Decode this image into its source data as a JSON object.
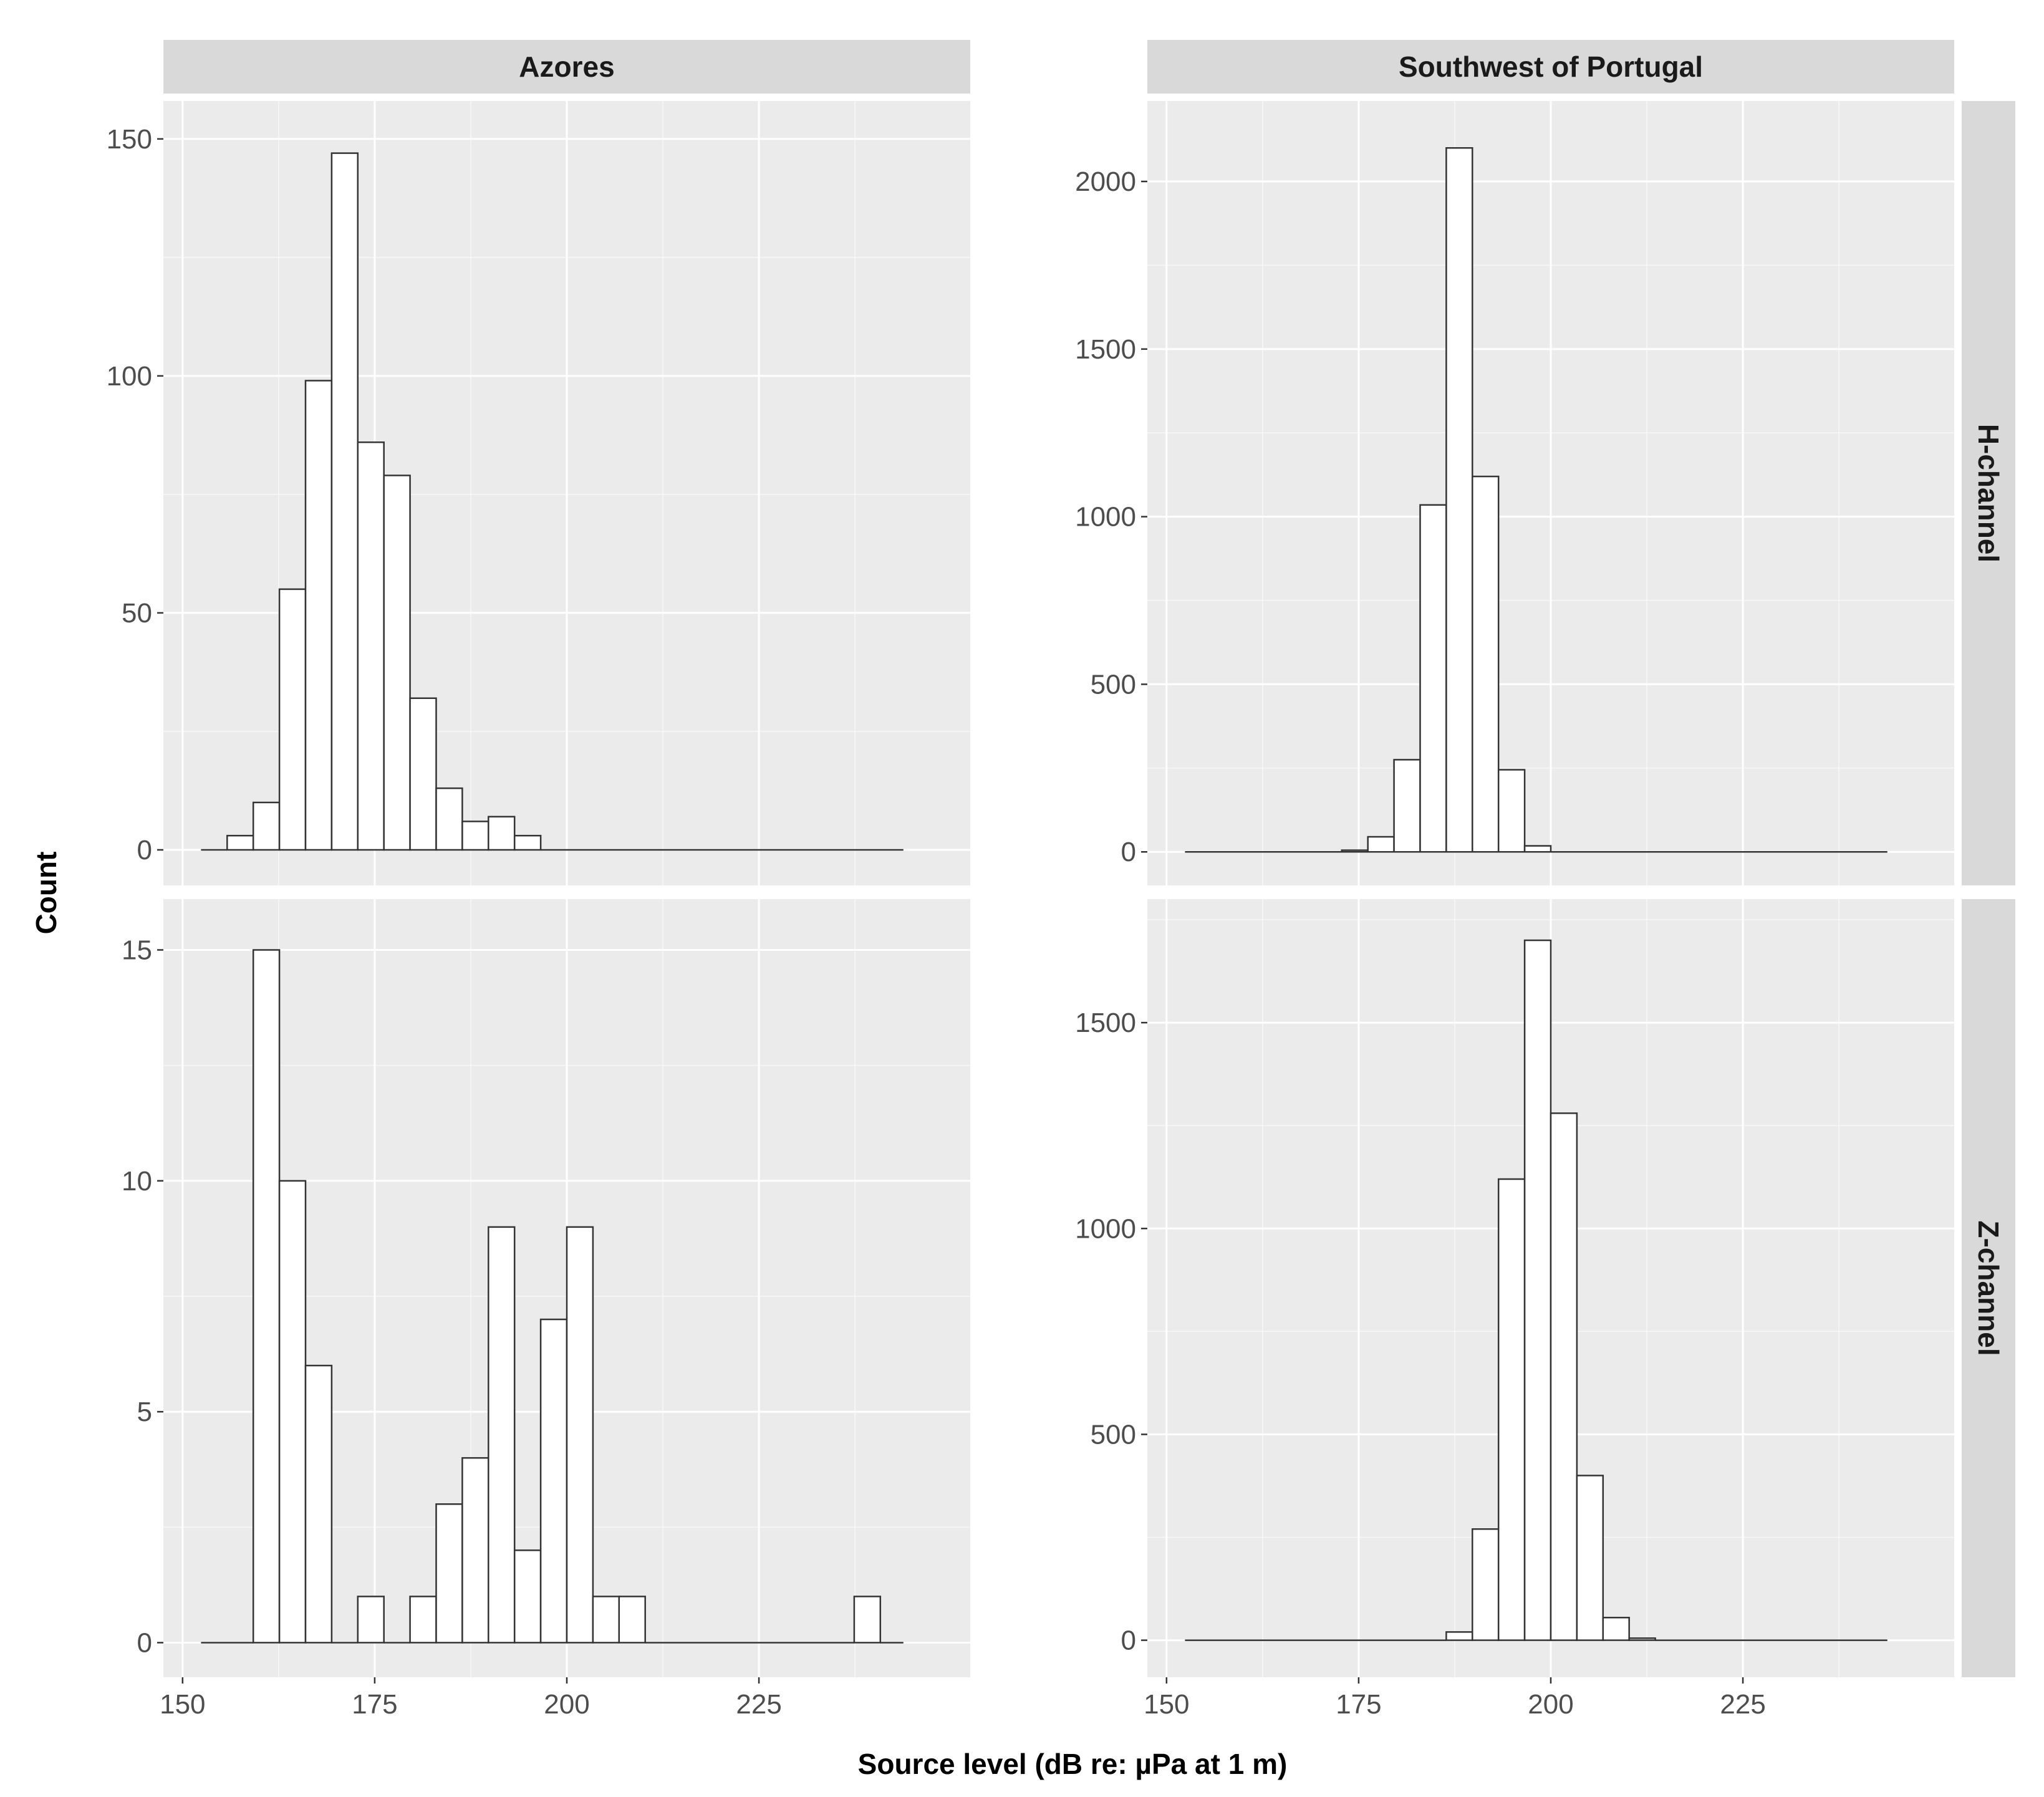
{
  "colors": {
    "panel_bg": "#ebebeb",
    "grid_major": "#ffffff",
    "strip_bg": "#d9d9d9",
    "bar_fill": "#ffffff",
    "bar_stroke": "#333333",
    "tick_text": "#4d4d4d",
    "title_text": "#000000"
  },
  "chart_data": {
    "type": "bar",
    "subtype": "faceted-histogram",
    "xlabel": "Source level (dB re: µPa at 1 m)",
    "ylabel": "Count",
    "columns": [
      "Azores",
      "Southwest of Portugal"
    ],
    "rows": [
      "H-channel",
      "Z-channel"
    ],
    "xlim": [
      147.5,
      252.5
    ],
    "x_ticks": [
      150,
      175,
      200,
      225
    ],
    "bin_width": 3.4,
    "grid": true,
    "panels": [
      {
        "column": "Azores",
        "row": "H-channel",
        "ylim": [
          -7.5,
          158
        ],
        "y_ticks": [
          0,
          50,
          100,
          150
        ],
        "bins": [
          {
            "x0": 152.4,
            "x1": 155.8,
            "count": 0
          },
          {
            "x0": 155.8,
            "x1": 159.2,
            "count": 3
          },
          {
            "x0": 159.2,
            "x1": 162.6,
            "count": 10
          },
          {
            "x0": 162.6,
            "x1": 166.0,
            "count": 55
          },
          {
            "x0": 166.0,
            "x1": 169.4,
            "count": 99
          },
          {
            "x0": 169.4,
            "x1": 172.8,
            "count": 147
          },
          {
            "x0": 172.8,
            "x1": 176.2,
            "count": 86
          },
          {
            "x0": 176.2,
            "x1": 179.6,
            "count": 79
          },
          {
            "x0": 179.6,
            "x1": 183.0,
            "count": 32
          },
          {
            "x0": 183.0,
            "x1": 186.4,
            "count": 13
          },
          {
            "x0": 186.4,
            "x1": 189.8,
            "count": 6
          },
          {
            "x0": 189.8,
            "x1": 193.2,
            "count": 7
          },
          {
            "x0": 193.2,
            "x1": 196.6,
            "count": 3
          },
          {
            "x0": 196.6,
            "x1": 243.8,
            "count": 0
          }
        ]
      },
      {
        "column": "Southwest of Portugal",
        "row": "H-channel",
        "ylim": [
          -100,
          2240
        ],
        "y_ticks": [
          0,
          500,
          1000,
          1500,
          2000
        ],
        "bins": [
          {
            "x0": 152.4,
            "x1": 172.8,
            "count": 0
          },
          {
            "x0": 172.8,
            "x1": 176.2,
            "count": 5
          },
          {
            "x0": 176.2,
            "x1": 179.6,
            "count": 45
          },
          {
            "x0": 179.6,
            "x1": 183.0,
            "count": 275
          },
          {
            "x0": 183.0,
            "x1": 186.4,
            "count": 1035
          },
          {
            "x0": 186.4,
            "x1": 189.8,
            "count": 2100
          },
          {
            "x0": 189.8,
            "x1": 193.2,
            "count": 1120
          },
          {
            "x0": 193.2,
            "x1": 196.6,
            "count": 245
          },
          {
            "x0": 196.6,
            "x1": 200.0,
            "count": 18
          },
          {
            "x0": 200.0,
            "x1": 243.8,
            "count": 0
          }
        ]
      },
      {
        "column": "Azores",
        "row": "Z-channel",
        "ylim": [
          -0.75,
          16.1
        ],
        "y_ticks": [
          0,
          5,
          10,
          15
        ],
        "bins": [
          {
            "x0": 152.4,
            "x1": 159.2,
            "count": 0
          },
          {
            "x0": 159.2,
            "x1": 162.6,
            "count": 15
          },
          {
            "x0": 162.6,
            "x1": 166.0,
            "count": 10
          },
          {
            "x0": 166.0,
            "x1": 169.4,
            "count": 6
          },
          {
            "x0": 169.4,
            "x1": 172.8,
            "count": 0
          },
          {
            "x0": 172.8,
            "x1": 176.2,
            "count": 1
          },
          {
            "x0": 176.2,
            "x1": 179.6,
            "count": 0
          },
          {
            "x0": 179.6,
            "x1": 183.0,
            "count": 1
          },
          {
            "x0": 183.0,
            "x1": 186.4,
            "count": 3
          },
          {
            "x0": 186.4,
            "x1": 189.8,
            "count": 4
          },
          {
            "x0": 189.8,
            "x1": 193.2,
            "count": 9
          },
          {
            "x0": 193.2,
            "x1": 196.6,
            "count": 2
          },
          {
            "x0": 196.6,
            "x1": 200.0,
            "count": 7
          },
          {
            "x0": 200.0,
            "x1": 203.4,
            "count": 9
          },
          {
            "x0": 203.4,
            "x1": 206.8,
            "count": 1
          },
          {
            "x0": 206.8,
            "x1": 210.2,
            "count": 1
          },
          {
            "x0": 210.2,
            "x1": 237.4,
            "count": 0
          },
          {
            "x0": 237.4,
            "x1": 240.8,
            "count": 1
          },
          {
            "x0": 240.8,
            "x1": 243.8,
            "count": 0
          }
        ]
      },
      {
        "column": "Southwest of Portugal",
        "row": "Z-channel",
        "ylim": [
          -90,
          1800
        ],
        "y_ticks": [
          0,
          500,
          1000,
          1500
        ],
        "bins": [
          {
            "x0": 152.4,
            "x1": 186.4,
            "count": 0
          },
          {
            "x0": 186.4,
            "x1": 189.8,
            "count": 20
          },
          {
            "x0": 189.8,
            "x1": 193.2,
            "count": 270
          },
          {
            "x0": 193.2,
            "x1": 196.6,
            "count": 1120
          },
          {
            "x0": 196.6,
            "x1": 200.0,
            "count": 1700
          },
          {
            "x0": 200.0,
            "x1": 203.4,
            "count": 1280
          },
          {
            "x0": 203.4,
            "x1": 206.8,
            "count": 400
          },
          {
            "x0": 206.8,
            "x1": 210.2,
            "count": 55
          },
          {
            "x0": 210.2,
            "x1": 213.6,
            "count": 5
          },
          {
            "x0": 213.6,
            "x1": 243.8,
            "count": 0
          }
        ]
      }
    ]
  }
}
